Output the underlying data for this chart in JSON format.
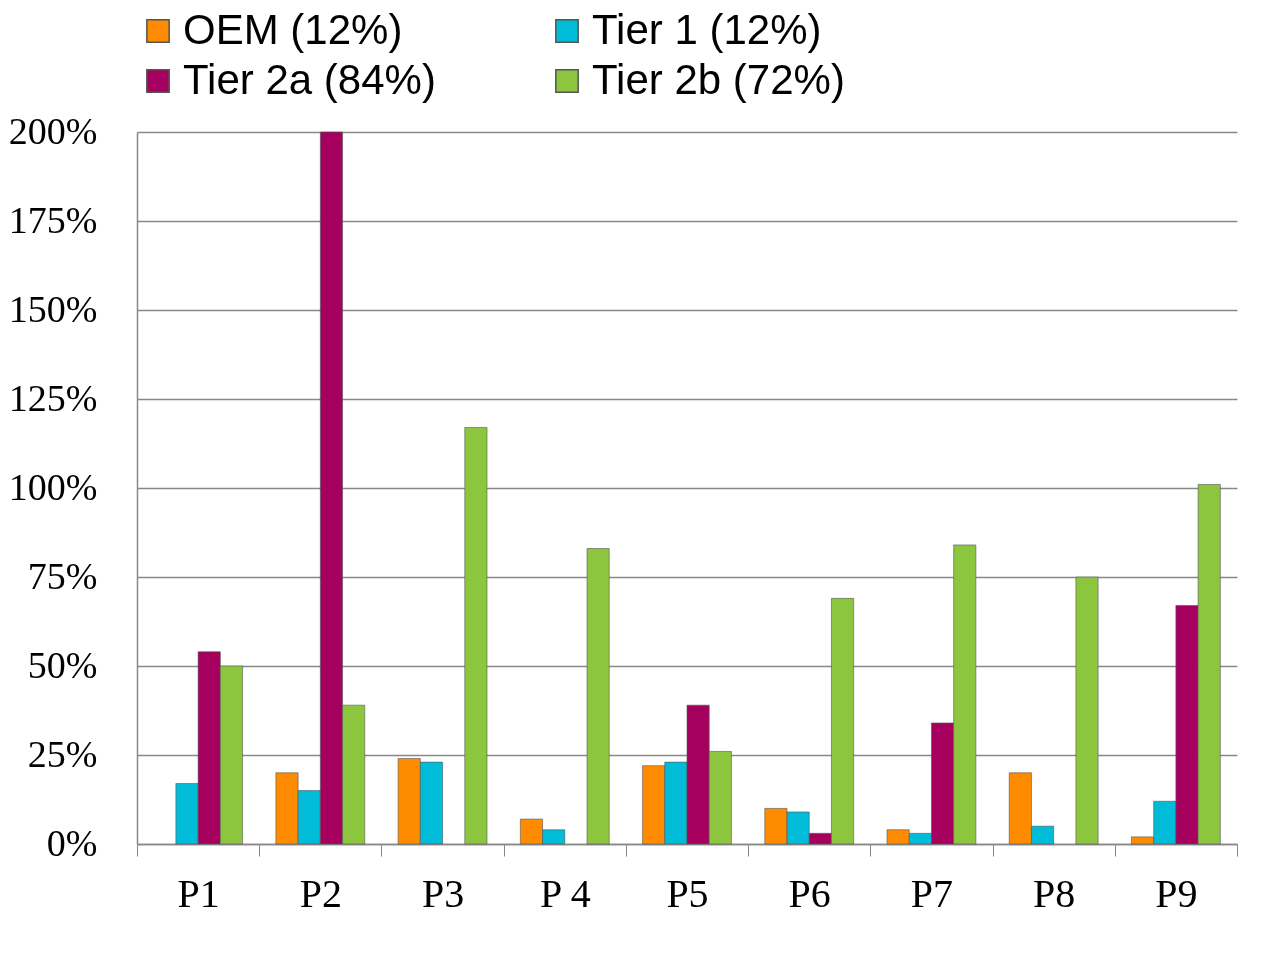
{
  "chart_data": {
    "type": "bar",
    "categories": [
      "P1",
      "P2",
      "P3",
      "P 4",
      "P5",
      "P6",
      "P7",
      "P8",
      "P9"
    ],
    "series": [
      {
        "name": "OEM (12%)",
        "color": "#ff8c00",
        "values": [
          null,
          20,
          24,
          7,
          22,
          10,
          4,
          20,
          2
        ]
      },
      {
        "name": "Tier 1 (12%)",
        "color": "#00bcd8",
        "values": [
          17,
          15,
          23,
          4,
          23,
          9,
          3,
          5,
          12
        ]
      },
      {
        "name": "Tier 2a (84%)",
        "color": "#a6005f",
        "values": [
          54,
          200,
          null,
          null,
          39,
          3,
          34,
          null,
          67
        ]
      },
      {
        "name": "Tier 2b (72%)",
        "color": "#8cc63f",
        "values": [
          50,
          39,
          117,
          83,
          26,
          69,
          84,
          75,
          101
        ]
      }
    ],
    "ylim": [
      0,
      200
    ],
    "yticks": [
      {
        "value": 0,
        "label": "0%"
      },
      {
        "value": 25,
        "label": "25%"
      },
      {
        "value": 50,
        "label": "50%"
      },
      {
        "value": 75,
        "label": "75%"
      },
      {
        "value": 100,
        "label": "100%"
      },
      {
        "value": 125,
        "label": "125%"
      },
      {
        "value": 150,
        "label": "150%"
      },
      {
        "value": 175,
        "label": "175%"
      },
      {
        "value": 200,
        "label": "200%"
      }
    ],
    "grid": "y",
    "legend": "top"
  }
}
